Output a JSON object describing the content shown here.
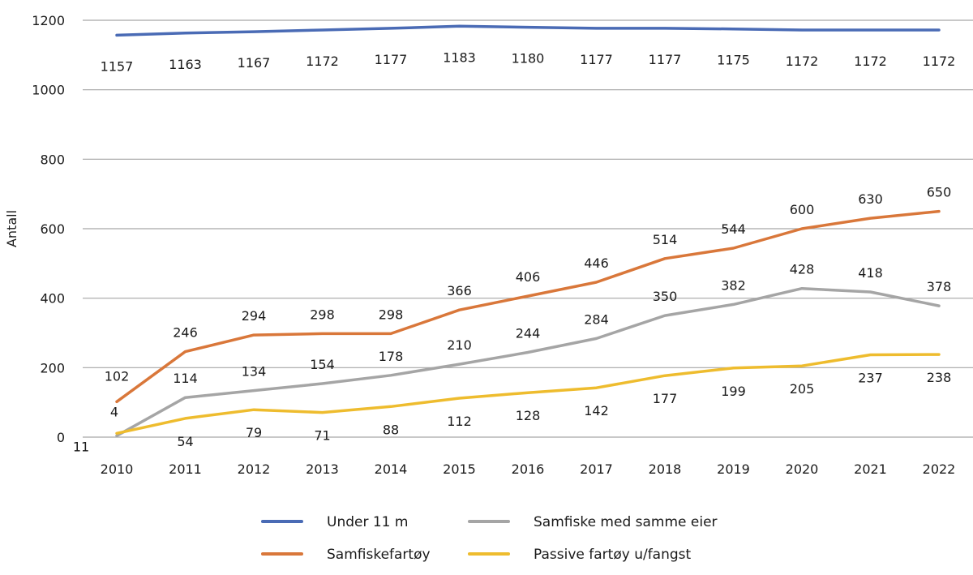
{
  "chart_data": {
    "type": "line",
    "title": "",
    "xlabel": "",
    "ylabel": "Antall",
    "ylim": [
      0,
      1200
    ],
    "yticks": [
      0,
      200,
      400,
      600,
      800,
      1000,
      1200
    ],
    "grid": true,
    "legend_position": "bottom",
    "x": [
      "2010",
      "2011",
      "2012",
      "2013",
      "2014",
      "2015",
      "2016",
      "2017",
      "2018",
      "2019",
      "2020",
      "2021",
      "2022"
    ],
    "series": [
      {
        "name": "Under 11 m",
        "color": "#4a6bb5",
        "values": [
          1157,
          1163,
          1167,
          1172,
          1177,
          1183,
          1180,
          1177,
          1177,
          1175,
          1172,
          1172,
          1172
        ],
        "label_position": "below"
      },
      {
        "name": "Samfiskefartøy",
        "color": "#d9773a",
        "values": [
          102,
          246,
          294,
          298,
          298,
          366,
          406,
          446,
          514,
          544,
          600,
          630,
          650
        ],
        "label_position": "above"
      },
      {
        "name": "Samfiske med samme eier",
        "color": "#a5a5a5",
        "values": [
          4,
          114,
          134,
          154,
          178,
          210,
          244,
          284,
          350,
          382,
          428,
          418,
          378
        ],
        "label_position": "above"
      },
      {
        "name": "Passive fartøy u/fangst",
        "color": "#eebc2e",
        "values": [
          11,
          54,
          79,
          71,
          88,
          112,
          128,
          142,
          177,
          199,
          205,
          237,
          238
        ],
        "label_position": "below"
      }
    ]
  }
}
